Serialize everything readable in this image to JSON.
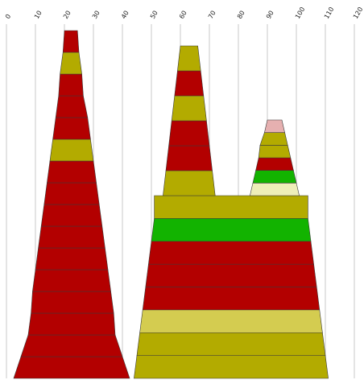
{
  "chart_data": {
    "type": "area",
    "title": "",
    "xlabel": "",
    "ylabel": "",
    "x_axis": {
      "ticks": [
        0,
        10,
        20,
        30,
        40,
        50,
        60,
        70,
        80,
        90,
        100,
        110,
        120
      ],
      "range": [
        0,
        120
      ],
      "grid": true,
      "tick_label_position": "top",
      "tick_label_rotation": -60
    },
    "colors": {
      "red": "#b30000",
      "olive": "#b3ab00",
      "green": "#12b300",
      "khaki": "#d4cc50",
      "cream": "#eeeeb8",
      "pink": "#e6b0b0",
      "outline": "#3a3a3a"
    },
    "shapes": [
      {
        "name": "left-tower",
        "layers": [
          {
            "left": 2.5,
            "right": 42.5,
            "color": "red"
          },
          {
            "left": 5.0,
            "right": 40.0,
            "color": "red"
          },
          {
            "left": 7.5,
            "right": 37.5,
            "color": "red"
          },
          {
            "left": 8.5,
            "right": 37.0,
            "color": "red"
          },
          {
            "left": 9.0,
            "right": 36.0,
            "color": "red"
          },
          {
            "left": 10.0,
            "right": 35.0,
            "color": "red"
          },
          {
            "left": 11.0,
            "right": 34.0,
            "color": "red"
          },
          {
            "left": 12.0,
            "right": 33.0,
            "color": "red"
          },
          {
            "left": 13.0,
            "right": 32.0,
            "color": "red"
          },
          {
            "left": 14.0,
            "right": 31.0,
            "color": "red"
          },
          {
            "left": 15.0,
            "right": 30.0,
            "color": "olive"
          },
          {
            "left": 16.0,
            "right": 29.0,
            "color": "red"
          },
          {
            "left": 17.0,
            "right": 28.0,
            "color": "red"
          },
          {
            "left": 18.0,
            "right": 26.5,
            "color": "red"
          },
          {
            "left": 18.5,
            "right": 26.0,
            "color": "olive"
          },
          {
            "left": 19.5,
            "right": 25.0,
            "color": "red"
          }
        ]
      },
      {
        "name": "right-group",
        "base": [
          {
            "left": 44.0,
            "right": 111.0,
            "color": "olive"
          },
          {
            "left": 45.0,
            "right": 110.0,
            "color": "olive"
          },
          {
            "left": 46.0,
            "right": 109.0,
            "color": "khaki"
          },
          {
            "left": 47.0,
            "right": 108.0,
            "color": "red"
          },
          {
            "left": 48.0,
            "right": 107.0,
            "color": "red"
          },
          {
            "left": 49.0,
            "right": 106.0,
            "color": "red"
          },
          {
            "left": 50.0,
            "right": 105.0,
            "color": "green"
          },
          {
            "left": 51.0,
            "right": 104.0,
            "color": "olive"
          }
        ],
        "peaks": [
          {
            "name": "middle-peak",
            "layers": [
              {
                "left": 54.0,
                "right": 72.0,
                "color": "olive"
              },
              {
                "left": 55.0,
                "right": 71.0,
                "color": "red"
              },
              {
                "left": 56.0,
                "right": 70.0,
                "color": "red"
              },
              {
                "left": 57.0,
                "right": 69.0,
                "color": "olive"
              },
              {
                "left": 58.0,
                "right": 68.0,
                "color": "red"
              },
              {
                "left": 59.0,
                "right": 67.0,
                "color": "olive"
              }
            ]
          },
          {
            "name": "right-peak",
            "layers": [
              {
                "left": 84.0,
                "right": 101.0,
                "color": "cream"
              },
              {
                "left": 85.0,
                "right": 100.0,
                "color": "green"
              },
              {
                "left": 86.0,
                "right": 99.0,
                "color": "red"
              },
              {
                "left": 87.0,
                "right": 98.0,
                "color": "olive"
              },
              {
                "left": 87.5,
                "right": 97.0,
                "color": "olive"
              },
              {
                "left": 89.0,
                "right": 96.0,
                "color": "pink"
              }
            ]
          }
        ]
      }
    ]
  }
}
